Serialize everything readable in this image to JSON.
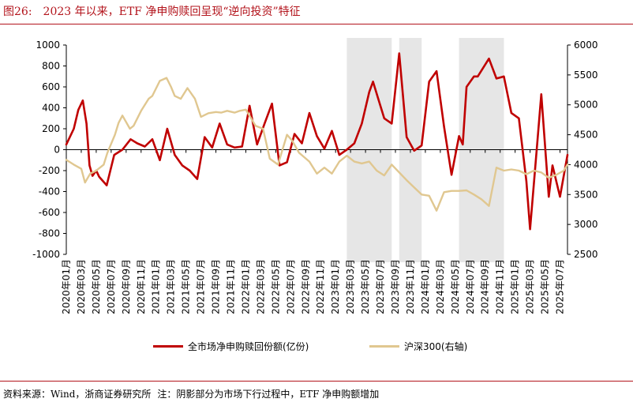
{
  "header": {
    "figure_label": "图26:",
    "title": "2023 年以来，ETF 净申购赎回呈现“逆向投资”特征"
  },
  "footer": {
    "source": "资料来源：Wind，浙商证券研究所",
    "note": "注：阴影部分为市场下行过程中，ETF 净申购额增加"
  },
  "colors": {
    "net_line": "#c00000",
    "index_line": "#e0c790",
    "shade": "#e6e6e6",
    "rule": "#b3141c"
  },
  "chart_data": {
    "type": "line",
    "title": "2023 年以来，ETF 净申购赎回呈现“逆向投资”特征",
    "x_tick_labels": [
      "2020年01月",
      "2020年03月",
      "2020年05月",
      "2020年07月",
      "2020年09月",
      "2020年11月",
      "2021年01月",
      "2021年03月",
      "2021年05月",
      "2021年07月",
      "2021年09月",
      "2021年11月",
      "2022年01月",
      "2022年03月",
      "2022年05月",
      "2022年07月",
      "2022年09月",
      "2022年11月",
      "2023年01月",
      "2023年03月",
      "2023年05月",
      "2023年07月",
      "2023年09月",
      "2023年11月",
      "2024年01月",
      "2024年03月",
      "2024年05月",
      "2024年07月",
      "2024年09月",
      "2024年11月",
      "2025年01月",
      "2025年03月",
      "2025年05月",
      "2025年07月"
    ],
    "x_range": [
      0,
      67
    ],
    "left_axis": {
      "min": -1000,
      "max": 1000,
      "step": 200,
      "ticks": [
        1000,
        800,
        600,
        400,
        200,
        0,
        -200,
        -400,
        -600,
        -800,
        -1000
      ]
    },
    "right_axis": {
      "min": 2500,
      "max": 6000,
      "step": 500,
      "ticks": [
        6000,
        5500,
        5000,
        4500,
        4000,
        3500,
        3000,
        2500
      ]
    },
    "shaded_ranges": [
      [
        37.5,
        43.5
      ],
      [
        44.5,
        47.5
      ],
      [
        52.5,
        58.5
      ]
    ],
    "series": [
      {
        "name": "全市场净申购赎回份额(亿份)",
        "axis": "left",
        "color": "#c00000",
        "points": [
          [
            0,
            50
          ],
          [
            1,
            200
          ],
          [
            1.6,
            380
          ],
          [
            2.2,
            470
          ],
          [
            2.7,
            250
          ],
          [
            3.1,
            -150
          ],
          [
            3.5,
            -250
          ],
          [
            4,
            -200
          ],
          [
            4.4,
            -260
          ],
          [
            5.4,
            -340
          ],
          [
            6.4,
            -50
          ],
          [
            7.5,
            0
          ],
          [
            8.6,
            100
          ],
          [
            9.5,
            60
          ],
          [
            10.5,
            30
          ],
          [
            11.5,
            100
          ],
          [
            12.5,
            -100
          ],
          [
            13.5,
            200
          ],
          [
            14.5,
            -50
          ],
          [
            15.5,
            -150
          ],
          [
            16.5,
            -200
          ],
          [
            17.5,
            -280
          ],
          [
            18.5,
            120
          ],
          [
            19.5,
            20
          ],
          [
            20.5,
            250
          ],
          [
            21.5,
            50
          ],
          [
            22.5,
            20
          ],
          [
            23.5,
            30
          ],
          [
            24.5,
            420
          ],
          [
            25.5,
            50
          ],
          [
            26.5,
            250
          ],
          [
            27.5,
            440
          ],
          [
            28.5,
            -150
          ],
          [
            29.5,
            -120
          ],
          [
            30.5,
            150
          ],
          [
            31.5,
            60
          ],
          [
            32.5,
            350
          ],
          [
            33.5,
            130
          ],
          [
            34.5,
            10
          ],
          [
            35.5,
            180
          ],
          [
            36.5,
            -50
          ],
          [
            37.5,
            0
          ],
          [
            38.5,
            60
          ],
          [
            39.5,
            250
          ],
          [
            40.5,
            550
          ],
          [
            41,
            650
          ],
          [
            42.5,
            300
          ],
          [
            43.5,
            250
          ],
          [
            44.5,
            920
          ],
          [
            45.5,
            120
          ],
          [
            46.5,
            -10
          ],
          [
            47.5,
            40
          ],
          [
            48.5,
            650
          ],
          [
            49.5,
            750
          ],
          [
            50.5,
            220
          ],
          [
            51.5,
            -240
          ],
          [
            52.5,
            130
          ],
          [
            53,
            50
          ],
          [
            53.5,
            600
          ],
          [
            54.5,
            700
          ],
          [
            55,
            700
          ],
          [
            56.5,
            870
          ],
          [
            57.5,
            680
          ],
          [
            58.5,
            700
          ],
          [
            59.5,
            350
          ],
          [
            60.5,
            300
          ],
          [
            61.5,
            -300
          ],
          [
            62,
            -760
          ],
          [
            63,
            100
          ],
          [
            63.5,
            530
          ],
          [
            64.5,
            -450
          ],
          [
            65,
            -150
          ],
          [
            66,
            -450
          ],
          [
            67,
            -50
          ]
        ]
      },
      {
        "name": "沪深300(右轴)",
        "axis": "right",
        "color": "#e0c790",
        "points": [
          [
            0,
            4080
          ],
          [
            1,
            4000
          ],
          [
            2,
            3930
          ],
          [
            2.5,
            3700
          ],
          [
            3.2,
            3850
          ],
          [
            4,
            3900
          ],
          [
            5,
            4000
          ],
          [
            5.5,
            4200
          ],
          [
            6.5,
            4500
          ],
          [
            7,
            4700
          ],
          [
            7.5,
            4820
          ],
          [
            8.5,
            4600
          ],
          [
            9,
            4650
          ],
          [
            10,
            4900
          ],
          [
            11,
            5100
          ],
          [
            11.5,
            5150
          ],
          [
            12.5,
            5400
          ],
          [
            13.4,
            5450
          ],
          [
            14,
            5300
          ],
          [
            14.5,
            5150
          ],
          [
            15.3,
            5100
          ],
          [
            16.2,
            5280
          ],
          [
            17.2,
            5100
          ],
          [
            18,
            4800
          ],
          [
            19,
            4860
          ],
          [
            20,
            4880
          ],
          [
            20.7,
            4870
          ],
          [
            21.5,
            4900
          ],
          [
            22.5,
            4870
          ],
          [
            23.2,
            4900
          ],
          [
            24,
            4920
          ],
          [
            25.3,
            4650
          ],
          [
            26.3,
            4600
          ],
          [
            27.2,
            4100
          ],
          [
            28.3,
            4000
          ],
          [
            29.5,
            4500
          ],
          [
            30.2,
            4400
          ],
          [
            31.1,
            4200
          ],
          [
            32.5,
            4050
          ],
          [
            33.5,
            3850
          ],
          [
            34.5,
            3950
          ],
          [
            35.5,
            3850
          ],
          [
            36.5,
            4050
          ],
          [
            37.5,
            4150
          ],
          [
            38.5,
            4050
          ],
          [
            39.5,
            4020
          ],
          [
            40.5,
            4050
          ],
          [
            41.5,
            3900
          ],
          [
            42.5,
            3820
          ],
          [
            43.5,
            4000
          ],
          [
            44.5,
            3870
          ],
          [
            45.5,
            3740
          ],
          [
            46.5,
            3620
          ],
          [
            47.5,
            3500
          ],
          [
            48.5,
            3480
          ],
          [
            49.5,
            3230
          ],
          [
            50.5,
            3540
          ],
          [
            51.5,
            3560
          ],
          [
            52.5,
            3560
          ],
          [
            53.5,
            3570
          ],
          [
            54.5,
            3500
          ],
          [
            55.5,
            3420
          ],
          [
            56.5,
            3310
          ],
          [
            57.5,
            3950
          ],
          [
            58.5,
            3900
          ],
          [
            59.5,
            3920
          ],
          [
            60.5,
            3900
          ],
          [
            61.5,
            3840
          ],
          [
            62.5,
            3900
          ],
          [
            63.5,
            3870
          ],
          [
            64.5,
            3780
          ],
          [
            65.5,
            3830
          ],
          [
            66.5,
            3900
          ],
          [
            67,
            4000
          ]
        ]
      }
    ],
    "legend": [
      "全市场净申购赎回份额(亿份)",
      "沪深300(右轴)"
    ],
    "legend_position": "bottom-center"
  }
}
